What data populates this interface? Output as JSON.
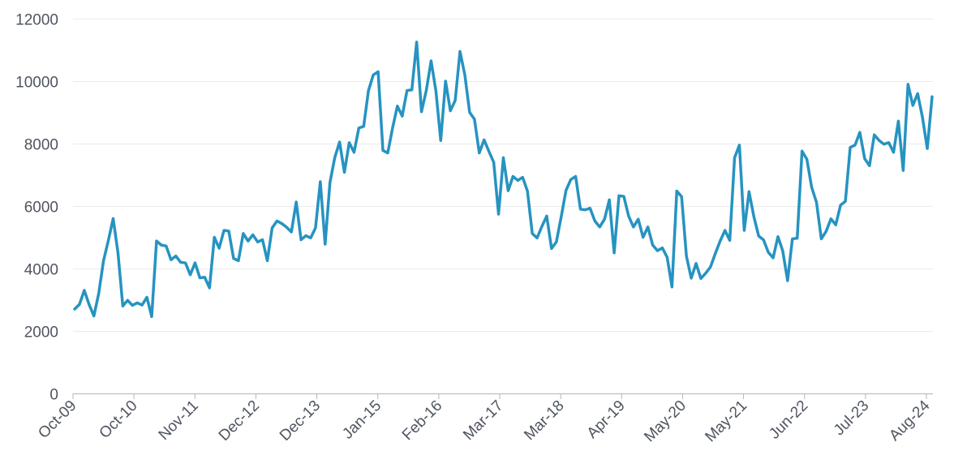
{
  "chart_data": {
    "type": "line",
    "title": "",
    "xlabel": "",
    "ylabel": "",
    "ylim": [
      0,
      12000
    ],
    "yticks": [
      0,
      2000,
      4000,
      6000,
      8000,
      10000,
      12000
    ],
    "xtick_labels": [
      "Oct-09",
      "Oct-10",
      "Nov-11",
      "Dec-12",
      "Dec-13",
      "Jan-15",
      "Feb-16",
      "Mar-17",
      "Mar-18",
      "Apr-19",
      "May-20",
      "May-21",
      "Jun-22",
      "Jul-23",
      "Aug-24"
    ],
    "grid": true,
    "legend": "none",
    "line_color": "#2693c1",
    "series": [
      {
        "values": [
          2700,
          2850,
          3300,
          2850,
          2480,
          3200,
          4250,
          4900,
          5600,
          4500,
          2800,
          2980,
          2820,
          2900,
          2830,
          3080,
          2460,
          4880,
          4750,
          4720,
          4280,
          4400,
          4200,
          4180,
          3800,
          4180,
          3700,
          3720,
          3380,
          5000,
          4650,
          5220,
          5200,
          4320,
          4250,
          5120,
          4880,
          5080,
          4850,
          4920,
          4250,
          5300,
          5520,
          5440,
          5320,
          5170,
          6130,
          4920,
          5050,
          4980,
          5300,
          6780,
          4780,
          6750,
          7550,
          8050,
          7080,
          8030,
          7720,
          8500,
          8550,
          9700,
          10200,
          10300,
          7780,
          7700,
          8500,
          9200,
          8880,
          9700,
          9720,
          11250,
          9020,
          9700,
          10650,
          9680,
          8100,
          10000,
          9050,
          9380,
          10950,
          10200,
          9000,
          8780,
          7700,
          8120,
          7750,
          7400,
          5740,
          7550,
          6490,
          6950,
          6820,
          6920,
          6480,
          5120,
          4980,
          5350,
          5680,
          4640,
          4850,
          5650,
          6500,
          6850,
          6950,
          5900,
          5880,
          5930,
          5520,
          5330,
          5580,
          6200,
          4500,
          6330,
          6310,
          5680,
          5330,
          5580,
          5000,
          5330,
          4750,
          4570,
          4660,
          4360,
          3410,
          6480,
          6300,
          4400,
          3690,
          4160,
          3680,
          3850,
          4050,
          4480,
          4880,
          5220,
          4900,
          7550,
          7950,
          5220,
          6460,
          5660,
          5040,
          4920,
          4520,
          4340,
          5020,
          4560,
          3610,
          4950,
          4970,
          7760,
          7500,
          6600,
          6120,
          4950,
          5190,
          5590,
          5400,
          6030,
          6150,
          7880,
          7950,
          8360,
          7520,
          7290,
          8280,
          8100,
          7980,
          8030,
          7720,
          8720,
          7140,
          9900,
          9220,
          9600,
          8840,
          7840,
          9500
        ]
      }
    ]
  }
}
